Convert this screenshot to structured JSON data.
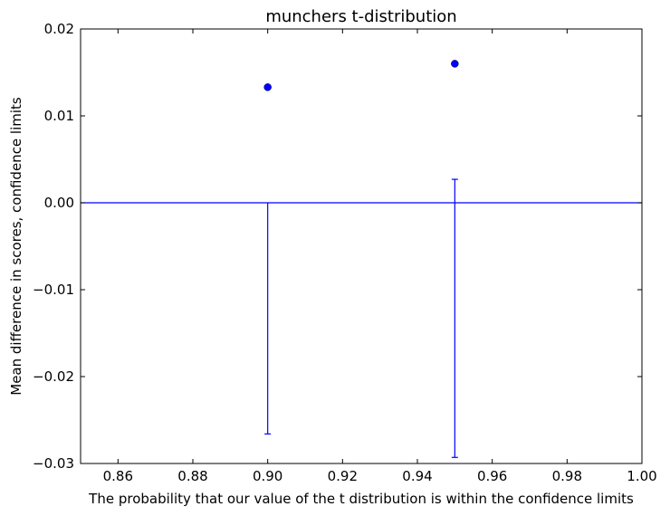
{
  "chart_data": {
    "type": "scatter",
    "title": "munchers t-distribution",
    "xlabel": "The probability that our value of the t distribution is within the confidence limits",
    "ylabel": "Mean difference in scores, confidence limits",
    "xlim": [
      0.85,
      1.0
    ],
    "ylim": [
      -0.03,
      0.02
    ],
    "x_ticks": [
      0.86,
      0.88,
      0.9,
      0.92,
      0.94,
      0.96,
      0.98,
      1.0
    ],
    "x_tick_labels": [
      "0.86",
      "0.88",
      "0.90",
      "0.92",
      "0.94",
      "0.96",
      "0.98",
      "1.00"
    ],
    "y_ticks": [
      -0.03,
      -0.02,
      -0.01,
      0.0,
      0.01,
      0.02
    ],
    "y_tick_labels": [
      "−0.03",
      "−0.02",
      "−0.01",
      "0.00",
      "0.01",
      "0.02"
    ],
    "series": [
      {
        "points": [
          {
            "x": 0.9,
            "y": 0.0133
          },
          {
            "x": 0.95,
            "y": 0.016
          }
        ]
      }
    ],
    "error_bars": [
      {
        "x": 0.9,
        "low": -0.0266,
        "high": 0.0
      },
      {
        "x": 0.95,
        "low": -0.0293,
        "high": 0.0027
      }
    ],
    "reference_line_y": 0.0,
    "grid": false,
    "colors": {
      "marker": "#0000ff",
      "line": "#0000ff",
      "axes": "#000000"
    }
  }
}
